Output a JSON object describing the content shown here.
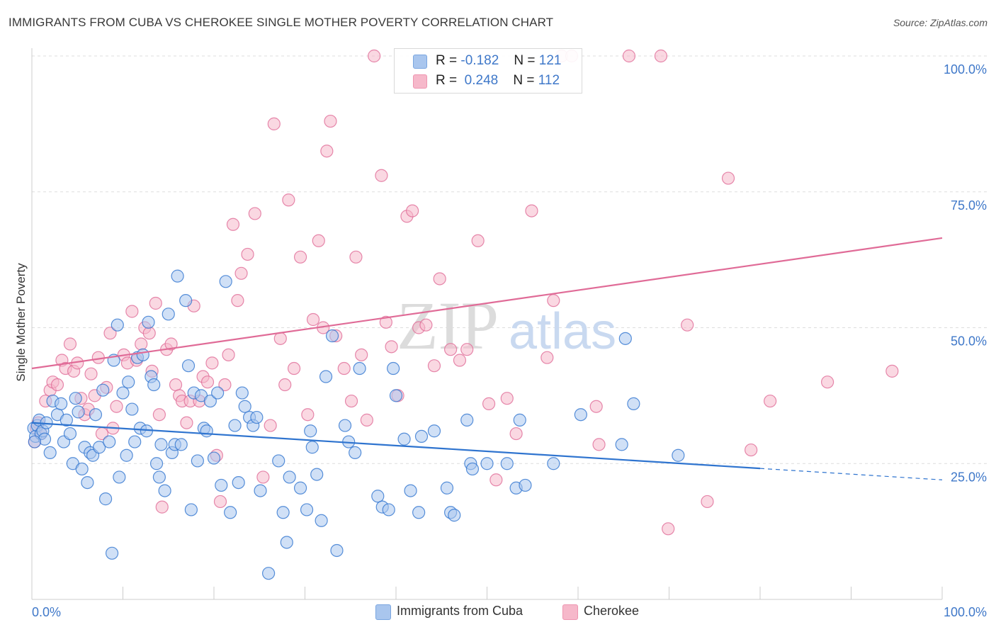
{
  "title": "IMMIGRANTS FROM CUBA VS CHEROKEE SINGLE MOTHER POVERTY CORRELATION CHART",
  "source": "Source: ZipAtlas.com",
  "watermark": {
    "zip": "ZIP",
    "atlas": "atlas"
  },
  "legend": {
    "r_label": "R =",
    "n_label": "N =",
    "rows": [
      {
        "r": "-0.182",
        "n": "121",
        "color": "#a9c6ee"
      },
      {
        "r": "0.248",
        "n": "112",
        "color": "#f6b8ca"
      }
    ]
  },
  "bottom_legend": [
    {
      "label": "Immigrants from Cuba",
      "color": "#a9c6ee"
    },
    {
      "label": "Cherokee",
      "color": "#f6b8ca"
    }
  ],
  "chart_data": {
    "type": "scatter",
    "title": "IMMIGRANTS FROM CUBA VS CHEROKEE SINGLE MOTHER POVERTY CORRELATION CHART",
    "xlabel": "",
    "ylabel": "Single Mother Poverty",
    "xlim": [
      0,
      100
    ],
    "ylim": [
      0,
      103
    ],
    "x_tick_labels": [
      "0.0%",
      "100.0%"
    ],
    "y_tick_labels": [
      {
        "value": 25,
        "label": "25.0%"
      },
      {
        "value": 50,
        "label": "50.0%"
      },
      {
        "value": 75,
        "label": "75.0%"
      },
      {
        "value": 100,
        "label": "100.0%"
      }
    ],
    "grid": "horizontal dashed",
    "legend_position": "top-center",
    "colors": {
      "cuba_fill": "#a9c6ee",
      "cuba_line": "#2f74cf",
      "cherokee_fill": "#f6b8ca",
      "cherokee_line": "#e06b97",
      "tick_label": "#3f78c9"
    },
    "series": [
      {
        "name": "Immigrants from Cuba",
        "trend": {
          "x0": 0,
          "y0": 32.5,
          "x1": 80,
          "y1": 24.1,
          "dashed_to_x": 100,
          "dashed_to_y": 22.0
        },
        "points": [
          [
            0.2,
            31.5
          ],
          [
            0.4,
            30.0
          ],
          [
            0.6,
            32.0
          ],
          [
            0.8,
            33.0
          ],
          [
            1.0,
            30.5
          ],
          [
            1.2,
            31.0
          ],
          [
            1.4,
            29.5
          ],
          [
            1.6,
            32.5
          ],
          [
            2.0,
            27.0
          ],
          [
            2.3,
            36.5
          ],
          [
            2.8,
            34.0
          ],
          [
            3.2,
            36.0
          ],
          [
            3.5,
            29.0
          ],
          [
            3.8,
            33.0
          ],
          [
            4.2,
            30.5
          ],
          [
            4.5,
            25.0
          ],
          [
            4.8,
            37.0
          ],
          [
            5.1,
            34.5
          ],
          [
            5.5,
            24.0
          ],
          [
            5.8,
            28.0
          ],
          [
            6.1,
            21.5
          ],
          [
            6.4,
            27.0
          ],
          [
            6.7,
            26.5
          ],
          [
            7.0,
            34.0
          ],
          [
            7.4,
            28.0
          ],
          [
            7.8,
            38.5
          ],
          [
            8.1,
            18.5
          ],
          [
            8.5,
            29.0
          ],
          [
            8.8,
            8.5
          ],
          [
            9.0,
            44.0
          ],
          [
            9.4,
            50.5
          ],
          [
            9.6,
            22.5
          ],
          [
            10.0,
            38.0
          ],
          [
            10.4,
            26.5
          ],
          [
            10.6,
            40.0
          ],
          [
            11.0,
            35.0
          ],
          [
            11.3,
            29.0
          ],
          [
            11.6,
            44.5
          ],
          [
            11.9,
            31.5
          ],
          [
            12.2,
            45.0
          ],
          [
            12.6,
            31.0
          ],
          [
            12.8,
            51.0
          ],
          [
            13.1,
            41.0
          ],
          [
            13.4,
            39.5
          ],
          [
            13.7,
            25.0
          ],
          [
            14.0,
            22.5
          ],
          [
            14.2,
            28.5
          ],
          [
            14.6,
            20.0
          ],
          [
            15.0,
            52.5
          ],
          [
            15.4,
            27.0
          ],
          [
            15.7,
            28.5
          ],
          [
            16.0,
            59.5
          ],
          [
            16.4,
            28.5
          ],
          [
            16.9,
            55.0
          ],
          [
            17.2,
            43.0
          ],
          [
            17.5,
            16.5
          ],
          [
            17.8,
            38.0
          ],
          [
            18.2,
            25.5
          ],
          [
            18.6,
            37.5
          ],
          [
            18.9,
            31.5
          ],
          [
            19.2,
            31.0
          ],
          [
            19.6,
            36.5
          ],
          [
            20.0,
            26.0
          ],
          [
            20.4,
            38.0
          ],
          [
            20.8,
            21.0
          ],
          [
            21.3,
            58.5
          ],
          [
            21.8,
            16.0
          ],
          [
            22.3,
            32.0
          ],
          [
            22.7,
            21.5
          ],
          [
            23.1,
            38.0
          ],
          [
            23.4,
            35.5
          ],
          [
            23.9,
            33.5
          ],
          [
            24.3,
            32.0
          ],
          [
            24.7,
            33.5
          ],
          [
            25.1,
            20.0
          ],
          [
            26.0,
            4.8
          ],
          [
            27.1,
            25.5
          ],
          [
            27.6,
            16.0
          ],
          [
            28.0,
            10.5
          ],
          [
            28.3,
            22.5
          ],
          [
            29.5,
            20.5
          ],
          [
            30.2,
            16.5
          ],
          [
            30.6,
            31.0
          ],
          [
            30.8,
            28.0
          ],
          [
            31.3,
            23.0
          ],
          [
            31.8,
            14.5
          ],
          [
            32.3,
            41.0
          ],
          [
            33.0,
            48.5
          ],
          [
            33.5,
            9.0
          ],
          [
            34.4,
            32.0
          ],
          [
            34.8,
            29.0
          ],
          [
            35.5,
            27.0
          ],
          [
            36.0,
            42.5
          ],
          [
            38.0,
            19.0
          ],
          [
            38.5,
            17.0
          ],
          [
            39.2,
            16.5
          ],
          [
            39.7,
            42.5
          ],
          [
            40.0,
            37.5
          ],
          [
            40.9,
            29.5
          ],
          [
            41.6,
            20.0
          ],
          [
            42.5,
            16.0
          ],
          [
            42.8,
            30.0
          ],
          [
            44.2,
            31.0
          ],
          [
            45.6,
            20.5
          ],
          [
            46.0,
            16.0
          ],
          [
            46.4,
            15.5
          ],
          [
            47.8,
            33.0
          ],
          [
            48.2,
            25.0
          ],
          [
            48.4,
            24.0
          ],
          [
            50.0,
            25.0
          ],
          [
            52.2,
            25.0
          ],
          [
            53.2,
            20.5
          ],
          [
            53.6,
            33.0
          ],
          [
            54.2,
            21.0
          ],
          [
            57.3,
            25.0
          ],
          [
            60.3,
            34.0
          ],
          [
            64.8,
            28.5
          ],
          [
            65.2,
            48.0
          ],
          [
            66.1,
            36.0
          ],
          [
            71.0,
            26.5
          ],
          [
            0.3,
            29.0
          ]
        ]
      },
      {
        "name": "Cherokee",
        "trend": {
          "x0": 0,
          "y0": 42.5,
          "x1": 100,
          "y1": 66.5
        },
        "points": [
          [
            0.3,
            29.0
          ],
          [
            0.5,
            31.5
          ],
          [
            0.7,
            32.5
          ],
          [
            1.0,
            30.5
          ],
          [
            1.5,
            36.5
          ],
          [
            2.0,
            38.5
          ],
          [
            2.3,
            40.0
          ],
          [
            2.8,
            39.5
          ],
          [
            3.3,
            44.0
          ],
          [
            3.7,
            42.5
          ],
          [
            4.2,
            47.0
          ],
          [
            4.6,
            42.0
          ],
          [
            5.0,
            43.5
          ],
          [
            5.4,
            37.0
          ],
          [
            5.8,
            34.0
          ],
          [
            6.2,
            35.0
          ],
          [
            6.5,
            41.5
          ],
          [
            6.9,
            37.5
          ],
          [
            7.3,
            44.5
          ],
          [
            7.7,
            30.5
          ],
          [
            8.2,
            39.0
          ],
          [
            8.6,
            49.0
          ],
          [
            8.9,
            31.5
          ],
          [
            9.3,
            35.5
          ],
          [
            10.1,
            45.0
          ],
          [
            10.5,
            43.5
          ],
          [
            11.0,
            53.0
          ],
          [
            11.5,
            44.0
          ],
          [
            12.0,
            47.0
          ],
          [
            12.4,
            50.0
          ],
          [
            12.9,
            49.0
          ],
          [
            13.2,
            42.0
          ],
          [
            13.6,
            54.5
          ],
          [
            14.0,
            34.0
          ],
          [
            14.3,
            17.0
          ],
          [
            14.8,
            46.0
          ],
          [
            15.3,
            47.0
          ],
          [
            15.8,
            39.5
          ],
          [
            16.2,
            37.5
          ],
          [
            16.5,
            36.5
          ],
          [
            17.0,
            32.5
          ],
          [
            17.4,
            36.5
          ],
          [
            17.8,
            54.0
          ],
          [
            18.4,
            36.5
          ],
          [
            18.8,
            41.0
          ],
          [
            19.3,
            40.0
          ],
          [
            19.8,
            43.5
          ],
          [
            20.3,
            26.5
          ],
          [
            20.7,
            18.0
          ],
          [
            21.2,
            39.5
          ],
          [
            21.6,
            45.0
          ],
          [
            22.1,
            69.0
          ],
          [
            22.6,
            55.0
          ],
          [
            23.0,
            60.0
          ],
          [
            23.7,
            63.5
          ],
          [
            24.5,
            71.0
          ],
          [
            25.4,
            22.5
          ],
          [
            26.2,
            32.0
          ],
          [
            26.6,
            87.5
          ],
          [
            27.3,
            48.0
          ],
          [
            27.8,
            39.5
          ],
          [
            28.2,
            73.5
          ],
          [
            28.8,
            42.5
          ],
          [
            29.5,
            63.0
          ],
          [
            30.3,
            34.0
          ],
          [
            30.9,
            51.5
          ],
          [
            31.5,
            66.0
          ],
          [
            32.0,
            50.0
          ],
          [
            32.4,
            82.5
          ],
          [
            32.8,
            88.0
          ],
          [
            33.4,
            48.5
          ],
          [
            34.3,
            42.5
          ],
          [
            35.1,
            36.5
          ],
          [
            35.6,
            63.0
          ],
          [
            36.2,
            45.0
          ],
          [
            36.8,
            33.0
          ],
          [
            37.6,
            100.0
          ],
          [
            38.4,
            78.0
          ],
          [
            38.9,
            51.0
          ],
          [
            39.5,
            46.5
          ],
          [
            40.2,
            37.5
          ],
          [
            41.2,
            70.5
          ],
          [
            41.8,
            71.5
          ],
          [
            42.5,
            50.0
          ],
          [
            43.3,
            50.5
          ],
          [
            44.2,
            43.0
          ],
          [
            44.8,
            59.0
          ],
          [
            46.0,
            46.0
          ],
          [
            47.0,
            44.0
          ],
          [
            47.8,
            46.0
          ],
          [
            49.0,
            66.0
          ],
          [
            50.2,
            36.0
          ],
          [
            51.0,
            22.0
          ],
          [
            52.2,
            37.0
          ],
          [
            53.2,
            30.5
          ],
          [
            54.9,
            71.5
          ],
          [
            56.6,
            44.5
          ],
          [
            57.3,
            55.0
          ],
          [
            58.2,
            100.0
          ],
          [
            59.3,
            100.0
          ],
          [
            62.0,
            35.5
          ],
          [
            62.3,
            28.5
          ],
          [
            65.6,
            100.0
          ],
          [
            69.1,
            100.0
          ],
          [
            69.9,
            13.0
          ],
          [
            72.0,
            50.5
          ],
          [
            74.2,
            18.0
          ],
          [
            76.5,
            77.5
          ],
          [
            79.0,
            27.5
          ],
          [
            81.1,
            36.5
          ],
          [
            87.4,
            40.0
          ],
          [
            94.5,
            42.0
          ]
        ]
      }
    ]
  }
}
